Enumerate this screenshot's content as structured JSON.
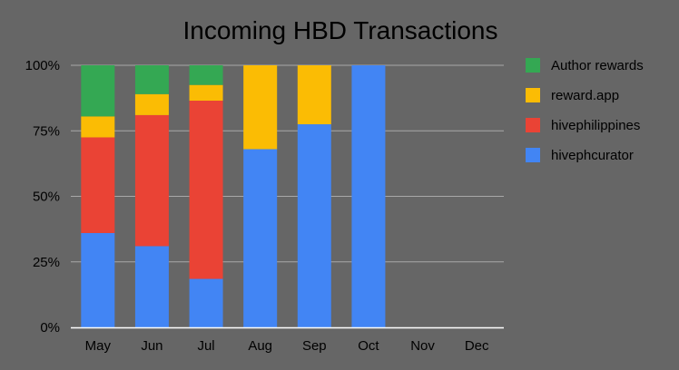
{
  "chart_data": {
    "type": "bar",
    "stacked": true,
    "normalized": true,
    "title": "Incoming HBD Transactions",
    "xlabel": "",
    "ylabel": "",
    "ylim": [
      0,
      100
    ],
    "y_ticks": [
      "0%",
      "25%",
      "50%",
      "75%",
      "100%"
    ],
    "grid": true,
    "legend_position": "right",
    "categories": [
      "May",
      "Jun",
      "Jul",
      "Aug",
      "Sep",
      "Oct",
      "Nov",
      "Dec"
    ],
    "series": [
      {
        "name": "hivephcurator",
        "color": "#4285f4",
        "values": [
          36,
          31,
          18.5,
          68,
          77.5,
          100,
          0,
          0
        ]
      },
      {
        "name": "hivephilippines",
        "color": "#ea4335",
        "values": [
          36.5,
          50,
          68,
          0,
          0,
          0,
          0,
          0
        ]
      },
      {
        "name": "reward.app",
        "color": "#fbbc04",
        "values": [
          8,
          8,
          6,
          32,
          22.5,
          0,
          0,
          0
        ]
      },
      {
        "name": "Author rewards",
        "color": "#34a853",
        "values": [
          19.5,
          11,
          7.5,
          0,
          0,
          0,
          0,
          0
        ]
      }
    ],
    "legend_order": [
      "Author rewards",
      "reward.app",
      "hivephilippines",
      "hivephcurator"
    ]
  }
}
